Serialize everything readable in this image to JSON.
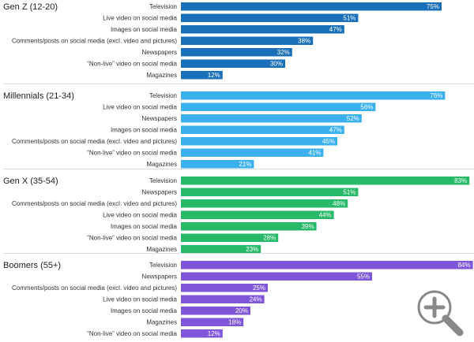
{
  "chart_data": [
    {
      "type": "bar",
      "title": "Gen Z (12-20)",
      "color": "#1a70b8",
      "categories": [
        "Television",
        "Live video on social media",
        "Images on social media",
        "Comments/posts on social media (excl. video and pictures)",
        "Newspapers",
        "“Non-live” video on social media",
        "Magazines"
      ],
      "values": [
        75,
        51,
        47,
        38,
        32,
        30,
        12
      ],
      "value_suffix": "%",
      "xlim": [
        0,
        100
      ]
    },
    {
      "type": "bar",
      "title": "Millennials (21-34)",
      "color": "#3ab0ec",
      "categories": [
        "Television",
        "Live video on social media",
        "Newspapers",
        "Images on social media",
        "Comments/posts on social media (excl. video and pictures)",
        "“Non-live” video on social media",
        "Magazines"
      ],
      "values": [
        76,
        56,
        52,
        47,
        45,
        41,
        21
      ],
      "value_suffix": "%",
      "xlim": [
        0,
        100
      ]
    },
    {
      "type": "bar",
      "title": "Gen X (35-54)",
      "color": "#27b968",
      "categories": [
        "Television",
        "Newspapers",
        "Comments/posts on social media (excl. video and pictures)",
        "Live video on social media",
        "Images on social media",
        "“Non-live” video on social media",
        "Magazines"
      ],
      "values": [
        83,
        51,
        48,
        44,
        39,
        28,
        23
      ],
      "value_suffix": "%",
      "xlim": [
        0,
        100
      ]
    },
    {
      "type": "bar",
      "title": "Boomers (55+)",
      "color": "#7f56d9",
      "categories": [
        "Television",
        "Newspapers",
        "Comments/posts on social media (excl. video and pictures)",
        "Live video on social media",
        "Images on social media",
        "Magazines",
        "“Non-live” video on social media"
      ],
      "values": [
        84,
        55,
        25,
        24,
        20,
        18,
        12
      ],
      "value_suffix": "%",
      "xlim": [
        0,
        100
      ]
    }
  ],
  "icons": {
    "zoom": "zoom-in-magnifier-icon"
  }
}
